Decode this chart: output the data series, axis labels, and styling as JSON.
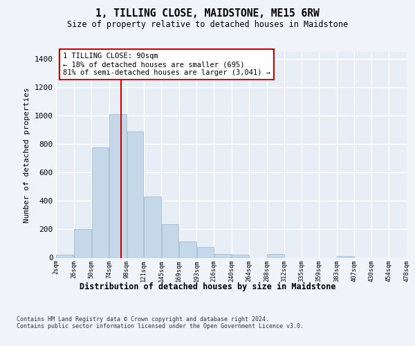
{
  "title": "1, TILLING CLOSE, MAIDSTONE, ME15 6RW",
  "subtitle": "Size of property relative to detached houses in Maidstone",
  "xlabel": "Distribution of detached houses by size in Maidstone",
  "ylabel": "Number of detached properties",
  "bar_color": "#c5d8ea",
  "bar_edge_color": "#9ab5cc",
  "background_color": "#e8eef5",
  "fig_background": "#f0f4f8",
  "grid_color": "#ffffff",
  "vline_x": 90,
  "vline_color": "#cc0000",
  "annotation_text": "1 TILLING CLOSE: 90sqm\n← 18% of detached houses are smaller (695)\n81% of semi-detached houses are larger (3,041) →",
  "annotation_box_facecolor": "#ffffff",
  "annotation_box_edgecolor": "#cc0000",
  "footnote1": "Contains HM Land Registry data © Crown copyright and database right 2024.",
  "footnote2": "Contains public sector information licensed under the Open Government Licence v3.0.",
  "bin_edges": [
    2,
    26,
    50,
    74,
    98,
    121,
    145,
    169,
    193,
    216,
    240,
    264,
    288,
    312,
    335,
    359,
    383,
    407,
    430,
    454,
    478
  ],
  "bin_labels": [
    "2sqm",
    "26sqm",
    "50sqm",
    "74sqm",
    "98sqm",
    "121sqm",
    "145sqm",
    "169sqm",
    "193sqm",
    "216sqm",
    "240sqm",
    "264sqm",
    "288sqm",
    "312sqm",
    "335sqm",
    "359sqm",
    "383sqm",
    "407sqm",
    "430sqm",
    "454sqm",
    "478sqm"
  ],
  "bar_heights": [
    20,
    200,
    775,
    1010,
    890,
    430,
    235,
    115,
    75,
    25,
    20,
    0,
    25,
    0,
    0,
    0,
    10,
    0,
    0,
    0
  ],
  "ylim": [
    0,
    1450
  ],
  "yticks": [
    0,
    200,
    400,
    600,
    800,
    1000,
    1200,
    1400
  ]
}
